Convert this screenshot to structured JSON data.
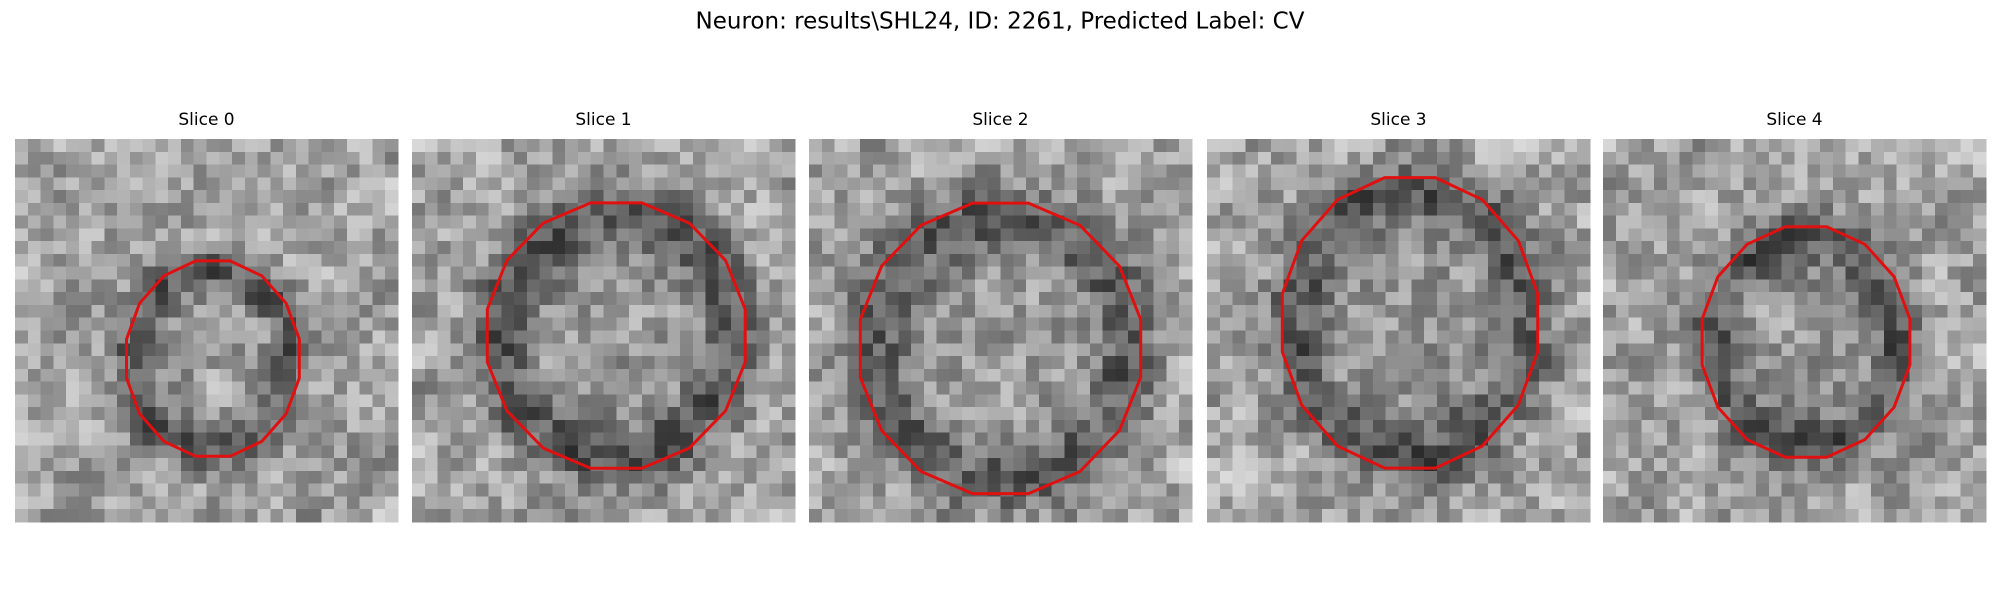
{
  "figure": {
    "title": "Neuron: results\\SHL24, ID: 2261, Predicted Label: CV",
    "panels": [
      {
        "title": "Slice 0"
      },
      {
        "title": "Slice 1"
      },
      {
        "title": "Slice 2"
      },
      {
        "title": "Slice 3"
      },
      {
        "title": "Slice 4"
      }
    ]
  }
}
